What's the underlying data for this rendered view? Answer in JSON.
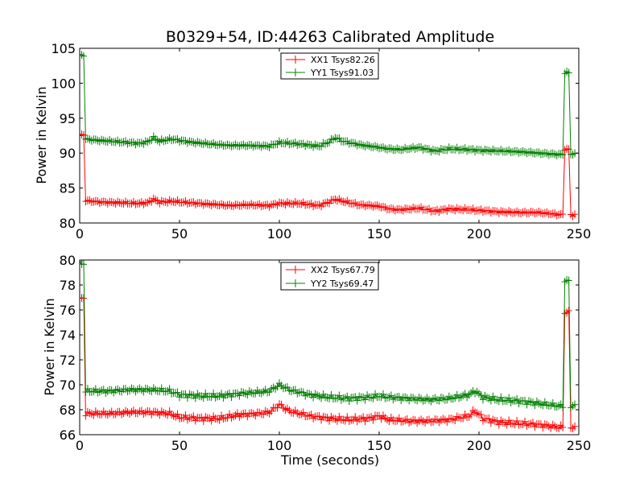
{
  "chart_data": [
    {
      "type": "line",
      "title": "B0329+54, ID:44263 Calibrated Amplitude",
      "xlabel": "",
      "ylabel": "Power in Kelvin",
      "xlim": [
        0,
        250
      ],
      "ylim": [
        80,
        105
      ],
      "xticks": [
        0,
        50,
        100,
        150,
        200,
        250
      ],
      "yticks": [
        80,
        85,
        90,
        95,
        100,
        105
      ],
      "grid": false,
      "legend_position": "top-center",
      "series": [
        {
          "name": "XX1 Tsys82.26",
          "color": "#ff0000",
          "points": [
            [
              0,
              92.5
            ],
            [
              2,
              92.6
            ],
            [
              3,
              83.2
            ],
            [
              10,
              83.0
            ],
            [
              20,
              82.9
            ],
            [
              30,
              82.8
            ],
            [
              34,
              82.9
            ],
            [
              37,
              83.4
            ],
            [
              40,
              83.0
            ],
            [
              46,
              83.1
            ],
            [
              55,
              82.9
            ],
            [
              65,
              82.7
            ],
            [
              75,
              82.5
            ],
            [
              85,
              82.6
            ],
            [
              95,
              82.5
            ],
            [
              100,
              82.8
            ],
            [
              110,
              82.8
            ],
            [
              120,
              82.5
            ],
            [
              125,
              83.0
            ],
            [
              128,
              83.4
            ],
            [
              132,
              83.1
            ],
            [
              140,
              82.6
            ],
            [
              150,
              82.4
            ],
            [
              155,
              82.0
            ],
            [
              160,
              81.9
            ],
            [
              170,
              82.1
            ],
            [
              178,
              81.7
            ],
            [
              185,
              82.0
            ],
            [
              195,
              81.9
            ],
            [
              200,
              81.8
            ],
            [
              210,
              81.6
            ],
            [
              220,
              81.5
            ],
            [
              230,
              81.5
            ],
            [
              240,
              81.2
            ],
            [
              242,
              81.2
            ],
            [
              243,
              90.6
            ],
            [
              245,
              90.5
            ],
            [
              246,
              81.2
            ],
            [
              248,
              81.1
            ]
          ]
        },
        {
          "name": "YY1 Tsys91.03",
          "color": "#008000",
          "points": [
            [
              0,
              104.0
            ],
            [
              2,
              104.0
            ],
            [
              3,
              92.0
            ],
            [
              10,
              91.8
            ],
            [
              20,
              91.6
            ],
            [
              30,
              91.4
            ],
            [
              34,
              91.6
            ],
            [
              37,
              92.2
            ],
            [
              40,
              91.7
            ],
            [
              46,
              92.0
            ],
            [
              55,
              91.6
            ],
            [
              65,
              91.3
            ],
            [
              75,
              91.1
            ],
            [
              85,
              91.1
            ],
            [
              95,
              91.0
            ],
            [
              100,
              91.5
            ],
            [
              110,
              91.3
            ],
            [
              120,
              91.0
            ],
            [
              125,
              91.6
            ],
            [
              128,
              92.2
            ],
            [
              132,
              91.7
            ],
            [
              140,
              91.2
            ],
            [
              150,
              90.8
            ],
            [
              155,
              90.6
            ],
            [
              160,
              90.5
            ],
            [
              170,
              90.8
            ],
            [
              178,
              90.3
            ],
            [
              185,
              90.6
            ],
            [
              195,
              90.5
            ],
            [
              200,
              90.4
            ],
            [
              210,
              90.3
            ],
            [
              220,
              90.2
            ],
            [
              230,
              90.0
            ],
            [
              240,
              89.8
            ],
            [
              242,
              89.8
            ],
            [
              243,
              101.5
            ],
            [
              245,
              101.5
            ],
            [
              246,
              89.9
            ],
            [
              248,
              89.8
            ]
          ]
        }
      ]
    },
    {
      "type": "line",
      "title": "",
      "xlabel": "Time (seconds)",
      "ylabel": "Power in Kelvin",
      "xlim": [
        0,
        250
      ],
      "ylim": [
        66,
        80
      ],
      "xticks": [
        0,
        50,
        100,
        150,
        200,
        250
      ],
      "yticks": [
        66,
        68,
        70,
        72,
        74,
        76,
        78,
        80
      ],
      "grid": false,
      "legend_position": "top-center",
      "series": [
        {
          "name": "XX2 Tsys67.79",
          "color": "#ff0000",
          "points": [
            [
              0,
              76.9
            ],
            [
              2,
              76.9
            ],
            [
              3,
              67.7
            ],
            [
              15,
              67.7
            ],
            [
              25,
              67.8
            ],
            [
              35,
              67.8
            ],
            [
              45,
              67.7
            ],
            [
              50,
              67.4
            ],
            [
              60,
              67.3
            ],
            [
              70,
              67.3
            ],
            [
              80,
              67.6
            ],
            [
              90,
              67.7
            ],
            [
              95,
              67.8
            ],
            [
              100,
              68.4
            ],
            [
              105,
              67.9
            ],
            [
              115,
              67.5
            ],
            [
              125,
              67.3
            ],
            [
              135,
              67.2
            ],
            [
              145,
              67.3
            ],
            [
              150,
              67.5
            ],
            [
              155,
              67.2
            ],
            [
              165,
              67.1
            ],
            [
              175,
              67.1
            ],
            [
              185,
              67.2
            ],
            [
              195,
              67.5
            ],
            [
              198,
              67.9
            ],
            [
              202,
              67.3
            ],
            [
              210,
              67.0
            ],
            [
              220,
              66.9
            ],
            [
              230,
              66.8
            ],
            [
              240,
              66.6
            ],
            [
              242,
              66.6
            ],
            [
              243,
              75.8
            ],
            [
              245,
              75.8
            ],
            [
              246,
              66.6
            ],
            [
              248,
              66.6
            ]
          ]
        },
        {
          "name": "YY2 Tsys69.47",
          "color": "#008000",
          "points": [
            [
              0,
              79.7
            ],
            [
              2,
              79.7
            ],
            [
              3,
              69.5
            ],
            [
              15,
              69.5
            ],
            [
              25,
              69.6
            ],
            [
              35,
              69.6
            ],
            [
              45,
              69.5
            ],
            [
              50,
              69.2
            ],
            [
              60,
              69.1
            ],
            [
              70,
              69.1
            ],
            [
              80,
              69.3
            ],
            [
              90,
              69.4
            ],
            [
              95,
              69.5
            ],
            [
              100,
              70.0
            ],
            [
              105,
              69.6
            ],
            [
              115,
              69.2
            ],
            [
              125,
              69.0
            ],
            [
              135,
              68.9
            ],
            [
              145,
              69.0
            ],
            [
              150,
              69.1
            ],
            [
              155,
              69.0
            ],
            [
              165,
              68.9
            ],
            [
              175,
              68.8
            ],
            [
              185,
              68.9
            ],
            [
              195,
              69.2
            ],
            [
              198,
              69.5
            ],
            [
              202,
              69.0
            ],
            [
              210,
              68.8
            ],
            [
              220,
              68.7
            ],
            [
              230,
              68.5
            ],
            [
              240,
              68.3
            ],
            [
              242,
              68.3
            ],
            [
              243,
              78.3
            ],
            [
              245,
              78.3
            ],
            [
              246,
              68.3
            ],
            [
              248,
              68.3
            ]
          ]
        }
      ]
    }
  ]
}
